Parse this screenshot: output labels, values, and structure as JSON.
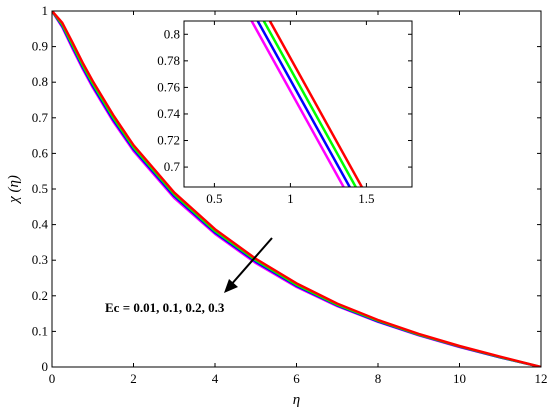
{
  "chart_data": [
    {
      "type": "line",
      "xlabel": "η",
      "ylabel": "χ (η)",
      "xlim": [
        0,
        12
      ],
      "ylim": [
        0,
        1
      ],
      "xticks": [
        "0",
        "2",
        "4",
        "6",
        "8",
        "10",
        "12"
      ],
      "yticks": [
        "0",
        "0.1",
        "0.2",
        "0.3",
        "0.4",
        "0.5",
        "0.6",
        "0.7",
        "0.8",
        "0.9",
        "1"
      ],
      "grid": false,
      "series": [
        {
          "color": "#ff00ff",
          "x": [
            0,
            0.25,
            0.5,
            0.75,
            1,
            1.5,
            2,
            3,
            4,
            5,
            6,
            7,
            8,
            9,
            10,
            11,
            12
          ],
          "y": [
            1,
            0.955,
            0.895,
            0.838,
            0.785,
            0.69,
            0.607,
            0.475,
            0.374,
            0.292,
            0.225,
            0.171,
            0.127,
            0.089,
            0.056,
            0.027,
            0
          ]
        },
        {
          "color": "#0000ff",
          "x": [
            0,
            0.25,
            0.5,
            0.75,
            1,
            1.5,
            2,
            3,
            4,
            5,
            6,
            7,
            8,
            9,
            10,
            11,
            12
          ],
          "y": [
            1,
            0.958,
            0.9,
            0.843,
            0.79,
            0.695,
            0.612,
            0.48,
            0.378,
            0.296,
            0.228,
            0.173,
            0.128,
            0.09,
            0.057,
            0.027,
            0
          ]
        },
        {
          "color": "#00ff00",
          "x": [
            0,
            0.25,
            0.5,
            0.75,
            1,
            1.5,
            2,
            3,
            4,
            5,
            6,
            7,
            8,
            9,
            10,
            11,
            12
          ],
          "y": [
            1,
            0.962,
            0.905,
            0.848,
            0.796,
            0.701,
            0.617,
            0.485,
            0.382,
            0.3,
            0.231,
            0.175,
            0.13,
            0.091,
            0.058,
            0.028,
            0
          ]
        },
        {
          "color": "#ff0000",
          "x": [
            0,
            0.25,
            0.5,
            0.75,
            1,
            1.5,
            2,
            3,
            4,
            5,
            6,
            7,
            8,
            9,
            10,
            11,
            12
          ],
          "y": [
            1,
            0.967,
            0.912,
            0.855,
            0.803,
            0.708,
            0.623,
            0.49,
            0.387,
            0.304,
            0.235,
            0.178,
            0.132,
            0.093,
            0.059,
            0.029,
            0
          ]
        }
      ],
      "annotation": "Ec = 0.01, 0.1, 0.2, 0.3"
    },
    {
      "type": "line",
      "xlim": [
        0.3,
        1.8
      ],
      "ylim": [
        0.685,
        0.81
      ],
      "xticks": [
        "0.5",
        "1",
        "1.5"
      ],
      "yticks": [
        "0.7",
        "0.72",
        "0.74",
        "0.76",
        "0.78",
        "0.8"
      ],
      "grid": false,
      "series": [
        {
          "color": "#ff00ff",
          "x": [
            0.745,
            1.35
          ],
          "y": [
            0.81,
            0.685
          ]
        },
        {
          "color": "#0000ff",
          "x": [
            0.785,
            1.39
          ],
          "y": [
            0.81,
            0.685
          ]
        },
        {
          "color": "#00ff00",
          "x": [
            0.825,
            1.43
          ],
          "y": [
            0.81,
            0.685
          ]
        },
        {
          "color": "#ff0000",
          "x": [
            0.865,
            1.47
          ],
          "y": [
            0.81,
            0.685
          ]
        }
      ]
    }
  ]
}
